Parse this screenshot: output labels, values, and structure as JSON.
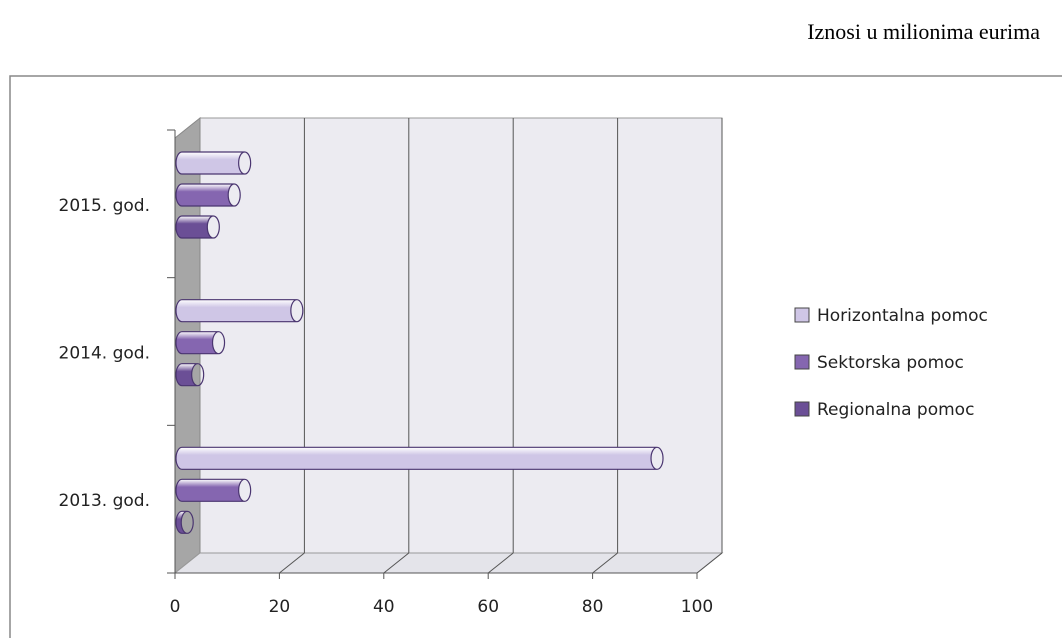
{
  "chart_data": {
    "type": "bar",
    "orientation": "horizontal",
    "style": "3d-cylinder",
    "annotation": "Iznosi u milionima eurima",
    "categories": [
      "2013. god.",
      "2014. god.",
      "2015. god."
    ],
    "series": [
      {
        "name": "Horizontalna pomoc",
        "color": "#cfc6e6",
        "values": [
          91,
          22,
          12
        ]
      },
      {
        "name": "Sektorska pomoc",
        "color": "#8566b0",
        "values": [
          12,
          7,
          10
        ]
      },
      {
        "name": "Regionalna pomoc",
        "color": "#6b4f96",
        "values": [
          1,
          3,
          6
        ]
      }
    ],
    "xlim": [
      0,
      100
    ],
    "xticks": [
      0,
      20,
      40,
      60,
      80,
      100
    ],
    "grid": true,
    "legend": "right"
  }
}
